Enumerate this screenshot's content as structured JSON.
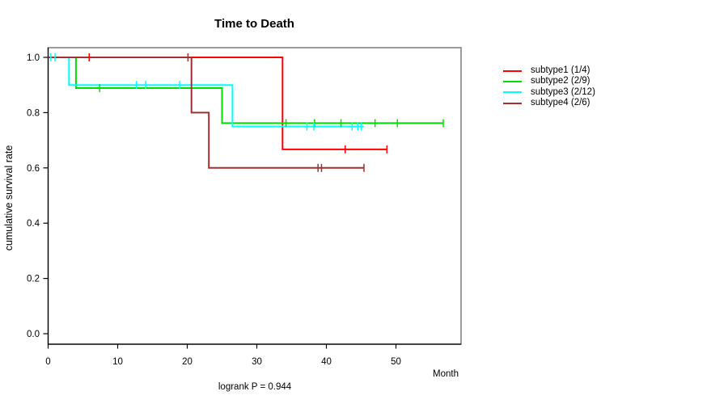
{
  "chart_data": {
    "type": "line",
    "subtype": "kaplan-meier-step",
    "title": "Time to Death",
    "xlabel": "Month",
    "ylabel": "cumulative survival rate",
    "footnote": "logrank P = 0.944",
    "x_ticks": [
      "0",
      "10",
      "20",
      "30",
      "40",
      "50"
    ],
    "x_tick_values": [
      0,
      10,
      20,
      30,
      40,
      50
    ],
    "y_ticks": [
      "0.0",
      "0.2",
      "0.4",
      "0.6",
      "0.8",
      "1.0"
    ],
    "y_tick_values": [
      0.0,
      0.2,
      0.4,
      0.6,
      0.8,
      1.0
    ],
    "xlim": [
      0,
      59.4
    ],
    "ylim": [
      0,
      1.0
    ],
    "grid": false,
    "legend_position": "right-outside",
    "box_color": "#848484",
    "axis_color": "#000000",
    "series": [
      {
        "name": "subtype1 (1/4)",
        "color": "#FF0000",
        "steps": [
          [
            0,
            1.0
          ],
          [
            33.7,
            1.0
          ],
          [
            33.7,
            0.667
          ],
          [
            48.7,
            0.667
          ]
        ],
        "censors": [
          [
            5.9,
            1.0
          ],
          [
            42.7,
            0.667
          ],
          [
            48.7,
            0.667
          ]
        ]
      },
      {
        "name": "subtype2 (2/9)",
        "color": "#00E000",
        "steps": [
          [
            0,
            1.0
          ],
          [
            4.0,
            1.0
          ],
          [
            4.0,
            0.889
          ],
          [
            25.0,
            0.889
          ],
          [
            25.0,
            0.762
          ],
          [
            56.8,
            0.762
          ]
        ],
        "censors": [
          [
            7.4,
            0.889
          ],
          [
            34.2,
            0.762
          ],
          [
            38.3,
            0.762
          ],
          [
            42.1,
            0.762
          ],
          [
            47.0,
            0.762
          ],
          [
            50.2,
            0.762
          ],
          [
            56.8,
            0.762
          ]
        ]
      },
      {
        "name": "subtype3 (2/12)",
        "color": "#00FFFF",
        "steps": [
          [
            0,
            1.0
          ],
          [
            3.0,
            1.0
          ],
          [
            3.0,
            0.9
          ],
          [
            26.5,
            0.9
          ],
          [
            26.5,
            0.75
          ],
          [
            45.4,
            0.75
          ]
        ],
        "censors": [
          [
            0.4,
            1.0
          ],
          [
            1.0,
            1.0
          ],
          [
            12.7,
            0.9
          ],
          [
            14.0,
            0.9
          ],
          [
            18.9,
            0.9
          ],
          [
            37.2,
            0.75
          ],
          [
            38.2,
            0.75
          ],
          [
            43.7,
            0.75
          ],
          [
            44.5,
            0.75
          ],
          [
            45.0,
            0.75
          ]
        ]
      },
      {
        "name": "subtype4 (2/6)",
        "color": "#A03030",
        "steps": [
          [
            0,
            1.0
          ],
          [
            20.6,
            1.0
          ],
          [
            20.6,
            0.8
          ],
          [
            23.1,
            0.8
          ],
          [
            23.1,
            0.6
          ],
          [
            45.4,
            0.6
          ]
        ],
        "censors": [
          [
            20.1,
            1.0
          ],
          [
            38.8,
            0.6
          ],
          [
            39.3,
            0.6
          ],
          [
            45.4,
            0.6
          ]
        ]
      }
    ]
  }
}
